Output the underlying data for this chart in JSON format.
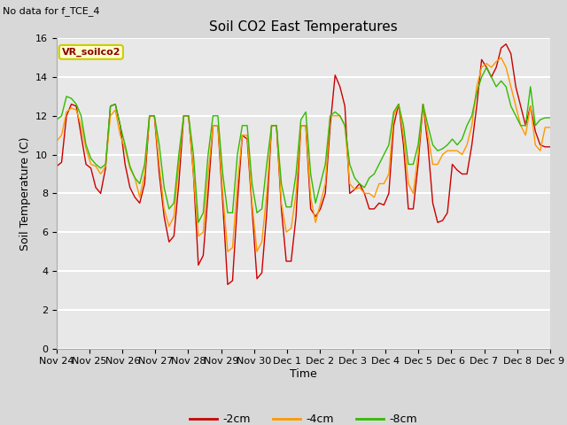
{
  "title": "Soil CO2 East Temperatures",
  "subtitle": "No data for f_TCE_4",
  "xlabel": "Time",
  "ylabel": "Soil Temperature (C)",
  "ylim": [
    0,
    16
  ],
  "yticks": [
    0,
    2,
    4,
    6,
    8,
    10,
    12,
    14,
    16
  ],
  "legend_label": "VR_soilco2",
  "fig_bg_color": "#d8d8d8",
  "plot_bg_color": "#e8e8e8",
  "grid_color": "#ffffff",
  "line_colors": {
    "2cm": "#cc0000",
    "4cm": "#ff9900",
    "8cm": "#33bb00"
  },
  "xtick_labels": [
    "Nov 24",
    "Nov 25",
    "Nov 26",
    "Nov 27",
    "Nov 28",
    "Nov 29",
    "Nov 30",
    "Dec 1",
    "Dec 2",
    "Dec 3",
    "Dec 4",
    "Dec 5",
    "Dec 6",
    "Dec 7",
    "Dec 8",
    "Dec 9"
  ],
  "series_2cm": [
    9.4,
    9.6,
    12.0,
    12.6,
    12.5,
    11.0,
    9.5,
    9.3,
    8.3,
    8.0,
    9.3,
    12.5,
    12.6,
    11.5,
    9.5,
    8.3,
    7.8,
    7.5,
    8.5,
    12.0,
    12.0,
    9.0,
    6.8,
    5.5,
    5.8,
    8.5,
    12.0,
    12.0,
    9.0,
    4.3,
    4.8,
    8.0,
    11.5,
    11.5,
    7.5,
    3.3,
    3.5,
    7.5,
    11.0,
    10.8,
    7.2,
    3.6,
    3.9,
    7.0,
    11.5,
    11.5,
    7.2,
    4.5,
    4.5,
    6.8,
    11.5,
    11.5,
    7.2,
    6.8,
    7.2,
    8.0,
    11.5,
    14.1,
    13.5,
    12.5,
    8.0,
    8.2,
    8.5,
    8.0,
    7.2,
    7.2,
    7.5,
    7.4,
    8.0,
    11.5,
    12.6,
    10.5,
    7.2,
    7.2,
    9.5,
    12.6,
    10.5,
    7.5,
    6.5,
    6.6,
    7.0,
    9.5,
    9.2,
    9.0,
    9.0,
    10.5,
    12.5,
    14.9,
    14.5,
    14.0,
    14.5,
    15.5,
    15.7,
    15.2,
    13.5,
    12.5,
    11.5,
    12.5,
    11.2,
    10.5,
    10.4,
    10.4
  ],
  "series_4cm": [
    10.7,
    11.0,
    12.2,
    12.4,
    12.3,
    11.5,
    10.3,
    9.5,
    9.4,
    9.0,
    9.4,
    12.0,
    12.3,
    11.0,
    10.3,
    9.3,
    8.8,
    7.8,
    9.0,
    12.0,
    12.0,
    9.5,
    7.2,
    6.3,
    6.8,
    9.5,
    12.0,
    12.0,
    9.0,
    5.8,
    6.0,
    9.0,
    11.5,
    11.5,
    8.0,
    5.0,
    5.2,
    8.5,
    11.0,
    11.0,
    7.5,
    5.0,
    5.5,
    8.0,
    11.5,
    11.5,
    7.5,
    6.0,
    6.2,
    8.0,
    11.5,
    11.5,
    7.8,
    6.5,
    7.5,
    8.5,
    12.0,
    12.0,
    12.0,
    11.5,
    8.5,
    8.2,
    8.3,
    8.0,
    8.0,
    7.8,
    8.5,
    8.5,
    9.0,
    12.0,
    12.6,
    11.0,
    8.5,
    8.0,
    10.0,
    12.6,
    11.0,
    9.5,
    9.5,
    10.0,
    10.2,
    10.2,
    10.2,
    10.0,
    10.5,
    11.5,
    13.5,
    14.5,
    14.7,
    14.5,
    14.8,
    15.0,
    14.5,
    13.5,
    12.5,
    11.5,
    11.0,
    12.5,
    10.5,
    10.2,
    11.4,
    11.4
  ],
  "series_8cm": [
    11.8,
    12.0,
    13.0,
    12.9,
    12.6,
    12.0,
    10.5,
    9.8,
    9.5,
    9.3,
    9.5,
    12.5,
    12.6,
    11.5,
    10.5,
    9.4,
    8.8,
    8.5,
    9.5,
    12.0,
    12.0,
    10.5,
    8.3,
    7.2,
    7.5,
    10.0,
    12.0,
    12.0,
    10.0,
    6.5,
    7.0,
    10.0,
    12.0,
    12.0,
    9.0,
    7.0,
    7.0,
    10.0,
    11.5,
    11.5,
    8.5,
    7.0,
    7.2,
    9.5,
    11.5,
    11.5,
    8.5,
    7.3,
    7.3,
    9.0,
    11.8,
    12.2,
    9.0,
    7.5,
    8.5,
    9.5,
    12.0,
    12.2,
    12.0,
    11.5,
    9.5,
    8.8,
    8.5,
    8.3,
    8.8,
    9.0,
    9.5,
    10.0,
    10.5,
    12.2,
    12.6,
    11.5,
    9.5,
    9.5,
    10.5,
    12.6,
    11.5,
    10.5,
    10.2,
    10.3,
    10.5,
    10.8,
    10.5,
    10.8,
    11.5,
    12.0,
    13.2,
    14.0,
    14.5,
    14.0,
    13.5,
    13.8,
    13.5,
    12.5,
    12.0,
    11.5,
    11.5,
    13.5,
    11.5,
    11.8,
    11.9,
    11.9
  ]
}
